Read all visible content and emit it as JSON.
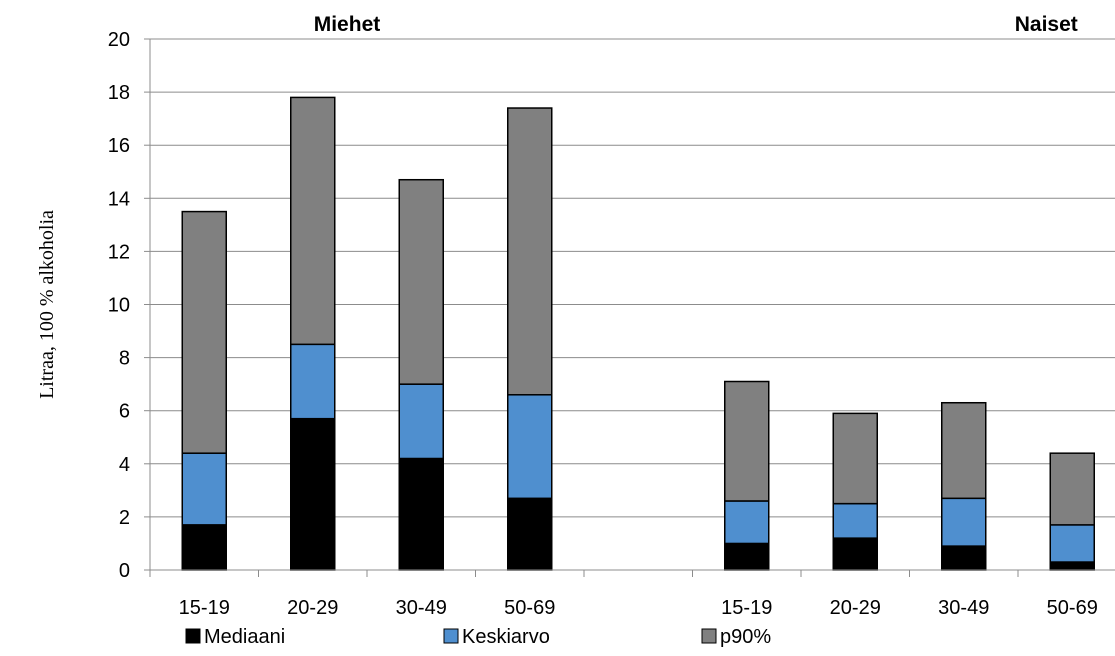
{
  "chart_data": {
    "type": "bar",
    "stacked": true,
    "groups": [
      {
        "label": "Miehet",
        "categories": [
          "15-19",
          "20-29",
          "30-49",
          "50-69"
        ]
      },
      {
        "label": "Naiset",
        "categories": [
          "15-19",
          "20-29",
          "30-49",
          "50-69"
        ]
      }
    ],
    "series": [
      {
        "name": "Mediaani",
        "color": "#000000",
        "values": [
          1.7,
          5.7,
          4.2,
          2.7,
          1.0,
          1.2,
          0.9,
          0.3
        ]
      },
      {
        "name": "Keskiarvo",
        "color": "#4f8fcf",
        "values": [
          2.7,
          2.8,
          2.8,
          3.9,
          1.6,
          1.3,
          1.8,
          1.4
        ]
      },
      {
        "name": "p90%",
        "color": "#808080",
        "values": [
          9.1,
          9.3,
          7.7,
          10.8,
          4.5,
          3.4,
          3.6,
          2.7
        ]
      }
    ],
    "totals": [
      13.5,
      17.8,
      14.7,
      17.4,
      7.1,
      5.9,
      6.3,
      4.4
    ],
    "ylabel": "Litraa, 100 % alkoholia",
    "xlabel": "",
    "ylim": [
      0,
      20
    ],
    "yticks": [
      "0",
      "2",
      "4",
      "6",
      "8",
      "10",
      "12",
      "14",
      "16",
      "18",
      "20"
    ],
    "grid": true,
    "legend_position": "bottom"
  }
}
